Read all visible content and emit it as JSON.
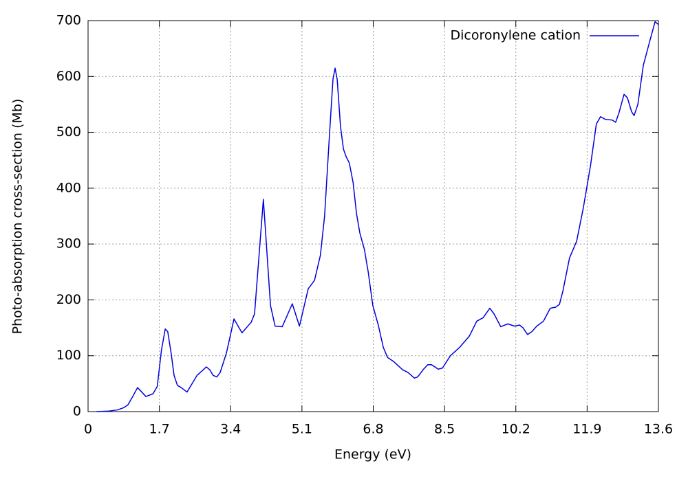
{
  "chart_data": {
    "type": "line",
    "xlabel": "Energy (eV)",
    "ylabel": "Photo-absorption cross-section (Mb)",
    "x": [
      0.2,
      0.5,
      0.7,
      0.85,
      0.95,
      1.05,
      1.18,
      1.38,
      1.55,
      1.65,
      1.75,
      1.84,
      1.9,
      1.98,
      2.05,
      2.13,
      2.22,
      2.36,
      2.48,
      2.6,
      2.72,
      2.82,
      2.9,
      2.98,
      3.07,
      3.15,
      3.3,
      3.48,
      3.67,
      3.89,
      3.97,
      4.18,
      4.35,
      4.46,
      4.63,
      4.87,
      5.04,
      5.25,
      5.4,
      5.54,
      5.64,
      5.76,
      5.84,
      5.89,
      5.94,
      6.02,
      6.09,
      6.15,
      6.23,
      6.32,
      6.4,
      6.48,
      6.59,
      6.68,
      6.79,
      6.92,
      7.04,
      7.14,
      7.28,
      7.5,
      7.63,
      7.78,
      7.86,
      7.99,
      8.1,
      8.19,
      8.35,
      8.45,
      8.64,
      8.86,
      9.09,
      9.27,
      9.42,
      9.58,
      9.68,
      9.84,
      10.01,
      10.17,
      10.29,
      10.37,
      10.48,
      10.58,
      10.7,
      10.86,
      11.02,
      11.15,
      11.24,
      11.32,
      11.48,
      11.65,
      11.81,
      11.98,
      12.12,
      12.22,
      12.34,
      12.5,
      12.58,
      12.66,
      12.78,
      12.86,
      12.96,
      13.02,
      13.11,
      13.24,
      13.4,
      13.52,
      13.6
    ],
    "series": [
      {
        "name": "Dicoronylene cation",
        "color": "#0000dd",
        "values": [
          0,
          1,
          3,
          7,
          12,
          25,
          43,
          27,
          32,
          45,
          110,
          148,
          143,
          105,
          65,
          47,
          43,
          35,
          50,
          65,
          73,
          80,
          75,
          65,
          62,
          70,
          105,
          166,
          141,
          160,
          175,
          380,
          190,
          153,
          152,
          193,
          153,
          220,
          235,
          280,
          350,
          500,
          595,
          615,
          595,
          510,
          470,
          457,
          445,
          410,
          355,
          320,
          290,
          250,
          190,
          155,
          115,
          97,
          90,
          75,
          70,
          60,
          62,
          75,
          84,
          84,
          76,
          78,
          100,
          115,
          135,
          162,
          168,
          185,
          175,
          152,
          157,
          153,
          155,
          150,
          138,
          143,
          153,
          162,
          185,
          187,
          192,
          215,
          275,
          305,
          365,
          440,
          515,
          528,
          523,
          522,
          518,
          535,
          568,
          562,
          537,
          530,
          550,
          620,
          665,
          698,
          693
        ]
      }
    ],
    "xlim": [
      0,
      13.6
    ],
    "xticks": [
      0,
      1.7,
      3.4,
      5.1,
      6.8,
      8.5,
      10.2,
      11.9,
      13.6
    ],
    "ylim": [
      0,
      700
    ],
    "yticks": [
      0,
      100,
      200,
      300,
      400,
      500,
      600,
      700
    ],
    "grid": true,
    "legend": "top-right"
  }
}
